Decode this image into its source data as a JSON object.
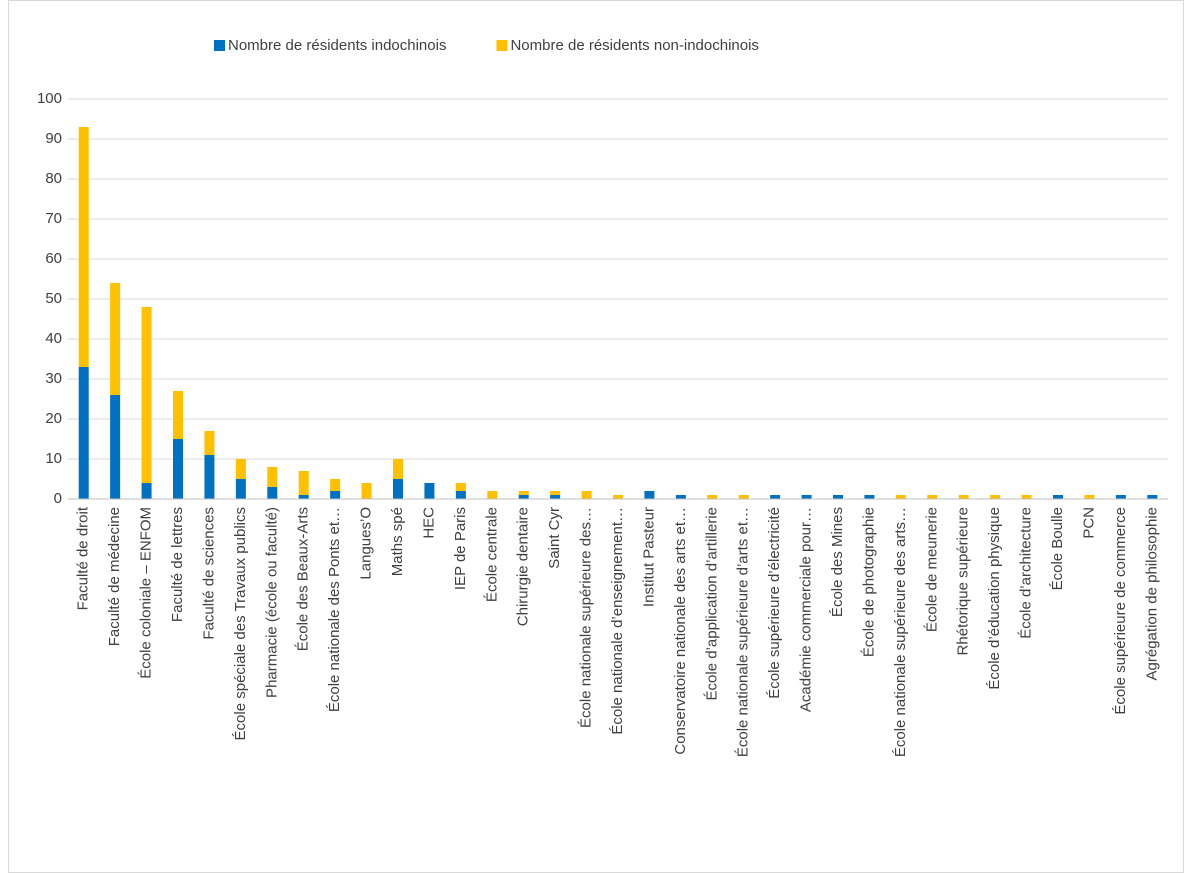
{
  "chart_data": {
    "type": "stacked_bar",
    "categories": [
      "Faculté de droit",
      "Faculté de médecine",
      "École coloniale – ENFOM",
      "Faculté de lettres",
      "Faculté de sciences",
      "École spéciale des Travaux publics",
      "Pharmacie (école ou faculté)",
      "École des Beaux-Arts",
      "École nationale des Ponts et…",
      "Langues’O",
      "Maths spé",
      "HEC",
      "IEP de Paris",
      "École centrale",
      "Chirurgie dentaire",
      "Saint Cyr",
      "École nationale supérieure des…",
      "École nationale d’enseignement…",
      "Institut Pasteur",
      "Conservatoire nationale des arts et…",
      "École d’application d’artillerie",
      "École nationale supérieure d’arts et…",
      "École supérieure d’électricité",
      "Académie commerciale pour…",
      "École des Mines",
      "École de photographie",
      "École nationale supérieure des arts…",
      "École de meunerie",
      "Rhétorique supérieure",
      "École d’éducation physique",
      "École d’architecture",
      "École Boulle",
      "PCN",
      "École supérieure de commerce",
      "Agrégation de philosophie"
    ],
    "series": [
      {
        "name": "Nombre de résidents indochinois",
        "color": "#0070c0",
        "values": [
          33,
          26,
          4,
          15,
          11,
          5,
          3,
          1,
          2,
          0,
          5,
          4,
          2,
          0,
          1,
          1,
          0,
          0,
          2,
          1,
          0,
          0,
          1,
          1,
          1,
          1,
          0,
          0,
          0,
          0,
          0,
          1,
          0,
          1,
          1
        ]
      },
      {
        "name": "Nombre de résidents non-indochinois",
        "color": "#ffc000",
        "values": [
          60,
          28,
          44,
          12,
          6,
          5,
          5,
          6,
          3,
          4,
          5,
          0,
          2,
          2,
          1,
          1,
          2,
          1,
          0,
          0,
          1,
          1,
          0,
          0,
          0,
          0,
          1,
          1,
          1,
          1,
          1,
          0,
          1,
          0,
          0
        ]
      }
    ],
    "ylim": [
      0,
      100
    ],
    "yticks": [
      0,
      10,
      20,
      30,
      40,
      50,
      60,
      70,
      80,
      90,
      100
    ],
    "grid": true,
    "legend": "top"
  }
}
